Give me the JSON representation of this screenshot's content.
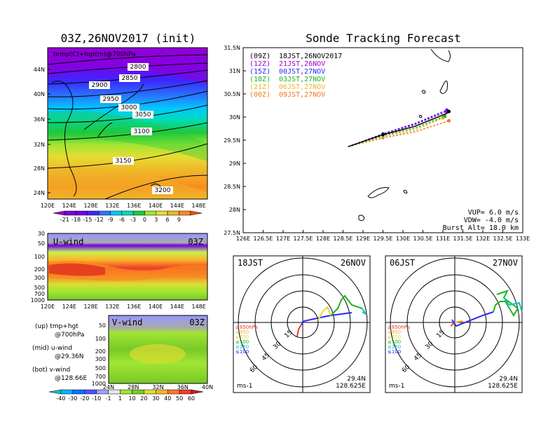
{
  "left_top": {
    "title": "03Z,26NOV2017 (init)",
    "label": "temp(C)+hgt(m)@700hPa",
    "lat_ticks": [
      "44N",
      "40N",
      "36N",
      "32N",
      "28N",
      "24N"
    ],
    "lon_ticks": [
      "120E",
      "124E",
      "128E",
      "132E",
      "136E",
      "140E",
      "144E",
      "148E"
    ],
    "contours": [
      "2800",
      "2850",
      "2900",
      "2950",
      "3000",
      "3050",
      "3100",
      "3150",
      "3200"
    ]
  },
  "temp_colorbar": {
    "labels": [
      "-21",
      "-18",
      "-15",
      "-12",
      "-9",
      "-6",
      "-3",
      "0",
      "3",
      "6",
      "9"
    ],
    "colors": [
      "#a000c8",
      "#8200dc",
      "#6e00f0",
      "#3c28ff",
      "#2878ff",
      "#00c8ff",
      "#00dcb4",
      "#1ec83c",
      "#a0e632",
      "#e6dc32",
      "#f0b428",
      "#fa8c1e",
      "#f05014"
    ]
  },
  "u_wind": {
    "label": "U-wind",
    "time": "03Z",
    "p_ticks": [
      "30",
      "50",
      "100",
      "200",
      "300",
      "500",
      "700",
      "1000"
    ],
    "lon_ticks": [
      "120E",
      "124E",
      "128E",
      "132E",
      "136E",
      "140E",
      "144E",
      "148E"
    ]
  },
  "v_wind": {
    "label": "V-wind",
    "time": "03Z",
    "p_ticks": [
      "50",
      "100",
      "200",
      "300",
      "500",
      "700",
      "1000"
    ],
    "lat_ticks": [
      "24N",
      "28N",
      "32N",
      "36N",
      "40N"
    ]
  },
  "legend_text": {
    "up1": "(up) tmp+hgt",
    "up2": "@700hPa",
    "mid1": "(mid) u-wind",
    "mid2": "@29.36N",
    "bot1": "(bot) v-wind",
    "bot2": "@128.66E"
  },
  "wind_colorbar": {
    "labels": [
      "-40",
      "-30",
      "-20",
      "-10",
      "-1",
      "1",
      "10",
      "20",
      "30",
      "40",
      "50",
      "60"
    ],
    "colors": [
      "#00c8c8",
      "#00b4ff",
      "#0078ff",
      "#5050ff",
      "#a0a0ff",
      "#e6e6e6",
      "#a0e632",
      "#78c828",
      "#dcdc32",
      "#fab428",
      "#fa7828",
      "#f03c28",
      "#c81e1e"
    ]
  },
  "tracking": {
    "title": "Sonde Tracking Forecast",
    "lat_ticks": [
      "31.5N",
      "31N",
      "30.5N",
      "30N",
      "29.5N",
      "29N",
      "28.5N",
      "28N",
      "27.5N"
    ],
    "lon_ticks": [
      "126E",
      "126.5E",
      "127E",
      "127.5E",
      "128E",
      "128.5E",
      "129E",
      "129.5E",
      "130E",
      "130.5E",
      "131E",
      "131.5E",
      "132E",
      "132.5E",
      "133E"
    ],
    "legend": [
      {
        "tag": "(09Z)",
        "text": "18JST,26NOV2017",
        "color": "#000000"
      },
      {
        "tag": "(12Z)",
        "text": "21JST,26NOV",
        "color": "#a000c8"
      },
      {
        "tag": "(15Z)",
        "text": "00JST,27NOV",
        "color": "#2828ff"
      },
      {
        "tag": "(18Z)",
        "text": "03JST,27NOV",
        "color": "#1eb41e"
      },
      {
        "tag": "(21Z)",
        "text": "06JST,27NOV",
        "color": "#f0b428"
      },
      {
        "tag": "(00Z)",
        "text": "09JST,27NOV",
        "color": "#f07820"
      }
    ],
    "params": {
      "vup": "VUP=  6.0 m/s",
      "vdw": "VDW= -4.0 m/s",
      "burst": "Burst Alt= 18.0 km"
    }
  },
  "chart_data": [
    {
      "type": "line",
      "title": "Sonde Tracking Forecast",
      "xlim": [
        126,
        133
      ],
      "ylim": [
        27.5,
        31.5
      ],
      "series": [
        {
          "name": "18JST,26NOV2017",
          "color": "#000000",
          "points": [
            [
              128.63,
              29.36
            ],
            [
              129.5,
              29.62
            ],
            [
              130.3,
              29.8
            ],
            [
              131.1,
              30.08
            ],
            [
              131.15,
              30.12
            ]
          ]
        },
        {
          "name": "21JST,26NOV",
          "color": "#a000c8",
          "points": [
            [
              128.63,
              29.36
            ],
            [
              129.5,
              29.63
            ],
            [
              130.3,
              29.84
            ],
            [
              131.1,
              30.12
            ]
          ]
        },
        {
          "name": "00JST,27NOV",
          "color": "#2828ff",
          "points": [
            [
              128.63,
              29.36
            ],
            [
              129.5,
              29.64
            ],
            [
              130.3,
              29.86
            ],
            [
              131.1,
              30.15
            ]
          ]
        },
        {
          "name": "03JST,27NOV",
          "color": "#1eb41e",
          "points": [
            [
              128.63,
              29.36
            ],
            [
              129.5,
              29.6
            ],
            [
              130.3,
              29.76
            ],
            [
              131.05,
              30.02
            ]
          ]
        },
        {
          "name": "06JST,27NOV",
          "color": "#f0b428",
          "points": [
            [
              128.63,
              29.36
            ],
            [
              129.5,
              29.58
            ],
            [
              130.3,
              29.72
            ],
            [
              131.0,
              29.98
            ]
          ]
        },
        {
          "name": "09JST,27NOV",
          "color": "#f07820",
          "points": [
            [
              128.63,
              29.36
            ],
            [
              129.5,
              29.55
            ],
            [
              130.3,
              29.68
            ],
            [
              131.15,
              29.92
            ]
          ]
        }
      ]
    },
    {
      "type": "hodograph",
      "title_left": "18JST",
      "title_right": "26NOV",
      "rings": [
        "15",
        "30",
        "45",
        "60"
      ],
      "unit": "ms-1",
      "lat": "29.4N",
      "lon": "128.625E",
      "levels": [
        {
          "label": "≥850hPa",
          "color": "#f03c28"
        },
        {
          "label": "≤850",
          "color": "#f0b428"
        },
        {
          "label": "≤700",
          "color": "#e6dc32"
        },
        {
          "label": "≤500",
          "color": "#1eb41e"
        },
        {
          "label": "≤250",
          "color": "#00c8c8"
        },
        {
          "label": "≤100",
          "color": "#2828ff"
        }
      ]
    },
    {
      "type": "hodograph",
      "title_left": "06JST",
      "title_right": "27NOV",
      "rings": [
        "15",
        "30",
        "45",
        "60"
      ],
      "unit": "ms-1",
      "lat": "29.4N",
      "lon": "128.625E",
      "levels": [
        {
          "label": "≥850hPa",
          "color": "#f03c28"
        },
        {
          "label": "≤850",
          "color": "#f0b428"
        },
        {
          "label": "≤700",
          "color": "#e6dc32"
        },
        {
          "label": "≤500",
          "color": "#1eb41e"
        },
        {
          "label": "≤250",
          "color": "#00c8c8"
        },
        {
          "label": "≤100",
          "color": "#2828ff"
        }
      ]
    }
  ]
}
